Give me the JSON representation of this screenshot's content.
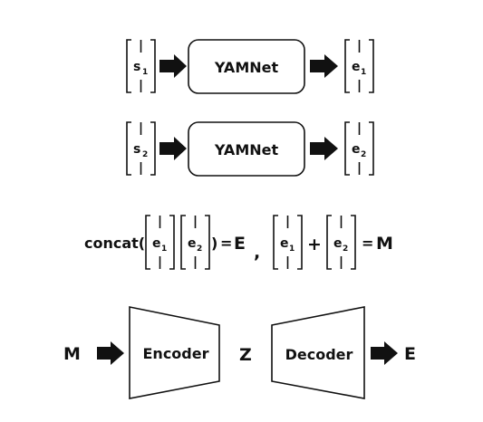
{
  "row1": {
    "input_vector": {
      "letter": "s",
      "sub": "1"
    },
    "model": "YAMNet",
    "output_vector": {
      "letter": "e",
      "sub": "1"
    }
  },
  "row2": {
    "input_vector": {
      "letter": "s",
      "sub": "2"
    },
    "model": "YAMNet",
    "output_vector": {
      "letter": "e",
      "sub": "2"
    }
  },
  "row3": {
    "concat_label": "concat(",
    "concat_close": ")",
    "vec_a": {
      "letter": "e",
      "sub": "1"
    },
    "vec_b": {
      "letter": "e",
      "sub": "2"
    },
    "equals_1": "=",
    "result_1": "E",
    "separator": ",",
    "vec_c": {
      "letter": "e",
      "sub": "1"
    },
    "plus": "+",
    "vec_d": {
      "letter": "e",
      "sub": "2"
    },
    "equals_2": "=",
    "result_2": "M"
  },
  "row4": {
    "input": "M",
    "encoder": "Encoder",
    "latent": "Z",
    "decoder": "Decoder",
    "output": "E"
  }
}
